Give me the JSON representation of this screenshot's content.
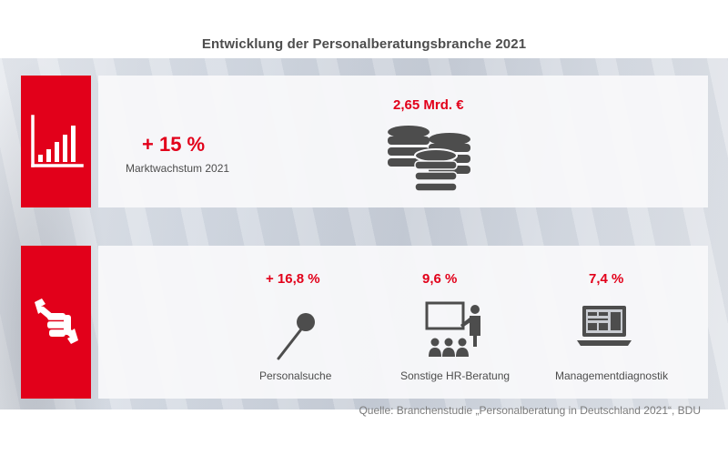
{
  "title": "Entwicklung der Personalberatungsbranche 2021",
  "colors": {
    "accent_red": "#e2001a",
    "text_grey": "#4d4d4d"
  },
  "top_section": {
    "icon": "bar-chart-icon",
    "market_growth": {
      "value": "+ 15 %",
      "label": "Marktwachstum 2021"
    },
    "revenue": {
      "value": "2,65 Mrd. €",
      "icon": "coin-stacks-icon"
    }
  },
  "bottom_section": {
    "icon": "fist-wrench-icon",
    "items": [
      {
        "value": "+ 16,8 %",
        "label": "Personalsuche",
        "icon": "pin-icon"
      },
      {
        "value": "9,6 %",
        "label": "Sonstige HR-Beratung",
        "icon": "presentation-icon"
      },
      {
        "value": "7,4 %",
        "label": "Managementdiagnostik",
        "icon": "laptop-icon"
      }
    ]
  },
  "source": "Quelle: Branchenstudie „Personalberatung in Deutschland 2021“, BDU"
}
